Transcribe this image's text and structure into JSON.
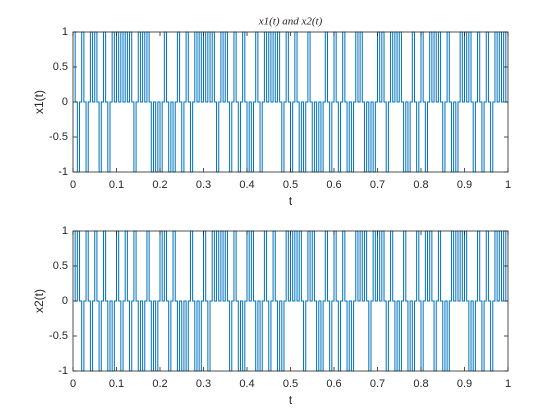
{
  "chart_data": [
    {
      "type": "line",
      "title": "x1(t) and x2(t)",
      "x_label": "t",
      "y_label": "x1(t)",
      "step": true,
      "xlim": [
        0,
        1
      ],
      "ylim": [
        -1,
        1
      ],
      "xticks": [
        0,
        0.1,
        0.2,
        0.3,
        0.4,
        0.5,
        0.6,
        0.7,
        0.8,
        0.9,
        1
      ],
      "yticks": [
        -1,
        -0.5,
        0,
        0.5,
        1
      ],
      "x": [
        0,
        0.005,
        0.01,
        0.015,
        0.02,
        0.025,
        0.03,
        0.035,
        0.04,
        0.045,
        0.05,
        0.055,
        0.06,
        0.065,
        0.07,
        0.075,
        0.08,
        0.085,
        0.09,
        0.095,
        0.1,
        0.105,
        0.11,
        0.115,
        0.12,
        0.125,
        0.13,
        0.135,
        0.14,
        0.145,
        0.15,
        0.155,
        0.16,
        0.165,
        0.17,
        0.175,
        0.18,
        0.185,
        0.19,
        0.195,
        0.2,
        0.205,
        0.21,
        0.215,
        0.22,
        0.225,
        0.23,
        0.235,
        0.24,
        0.245,
        0.25,
        0.255,
        0.26,
        0.265,
        0.27,
        0.275,
        0.28,
        0.285,
        0.29,
        0.295,
        0.3,
        0.305,
        0.31,
        0.315,
        0.32,
        0.325,
        0.33,
        0.335,
        0.34,
        0.345,
        0.35,
        0.355,
        0.36,
        0.365,
        0.37,
        0.375,
        0.38,
        0.385,
        0.39,
        0.395,
        0.4,
        0.405,
        0.41,
        0.415,
        0.42,
        0.425,
        0.43,
        0.435,
        0.44,
        0.445,
        0.45,
        0.455,
        0.46,
        0.465,
        0.47,
        0.475,
        0.48,
        0.485,
        0.49,
        0.495,
        0.5,
        0.505,
        0.51,
        0.515,
        0.52,
        0.525,
        0.53,
        0.535,
        0.54,
        0.545,
        0.55,
        0.555,
        0.56,
        0.565,
        0.57,
        0.575,
        0.58,
        0.585,
        0.59,
        0.595,
        0.6,
        0.605,
        0.61,
        0.615,
        0.62,
        0.625,
        0.63,
        0.635,
        0.64,
        0.645,
        0.65,
        0.655,
        0.66,
        0.665,
        0.67,
        0.675,
        0.68,
        0.685,
        0.69,
        0.695,
        0.7,
        0.705,
        0.71,
        0.715,
        0.72,
        0.725,
        0.73,
        0.735,
        0.74,
        0.745,
        0.75,
        0.755,
        0.76,
        0.765,
        0.77,
        0.775,
        0.78,
        0.785,
        0.79,
        0.795,
        0.8,
        0.805,
        0.81,
        0.815,
        0.82,
        0.825,
        0.83,
        0.835,
        0.84,
        0.845,
        0.85,
        0.855,
        0.86,
        0.865,
        0.87,
        0.875,
        0.88,
        0.885,
        0.89,
        0.895,
        0.9,
        0.905,
        0.91,
        0.915,
        0.92,
        0.925,
        0.93,
        0.935,
        0.94,
        0.945,
        0.95,
        0.955,
        0.96,
        0.965,
        0.97,
        0.975,
        0.98,
        0.985,
        0.99,
        0.995
      ],
      "series": [
        {
          "color": "#0072bd",
          "values": [
            1,
            0,
            -1,
            0,
            1,
            0,
            -1,
            0,
            1,
            0,
            1,
            0,
            -1,
            0,
            1,
            0,
            -1,
            0,
            1,
            0,
            1,
            0,
            1,
            0,
            1,
            0,
            1,
            0,
            -1,
            0,
            1,
            0,
            1,
            0,
            1,
            0,
            -1,
            0,
            -1,
            0,
            -1,
            0,
            1,
            0,
            -1,
            0,
            -1,
            0,
            1,
            0,
            -1,
            0,
            1,
            0,
            -1,
            0,
            1,
            0,
            1,
            0,
            1,
            0,
            1,
            0,
            1,
            0,
            -1,
            0,
            1,
            0,
            1,
            0,
            -1,
            0,
            1,
            0,
            -1,
            0,
            1,
            0,
            -1,
            0,
            -1,
            0,
            1,
            0,
            -1,
            0,
            1,
            0,
            1,
            0,
            1,
            0,
            1,
            0,
            -1,
            0,
            1,
            0,
            -1,
            0,
            1,
            0,
            -1,
            0,
            -1,
            0,
            1,
            0,
            -1,
            0,
            -1,
            0,
            -1,
            0,
            1,
            0,
            -1,
            0,
            1,
            0,
            -1,
            0,
            1,
            0,
            -1,
            0,
            -1,
            0,
            1,
            0,
            1,
            0,
            -1,
            0,
            -1,
            0,
            -1,
            0,
            1,
            0,
            1,
            0,
            -1,
            0,
            1,
            0,
            1,
            0,
            1,
            0,
            -1,
            0,
            -1,
            0,
            1,
            0,
            -1,
            0,
            1,
            0,
            -1,
            0,
            1,
            0,
            1,
            0,
            1,
            0,
            -1,
            0,
            1,
            0,
            -1,
            0,
            -1,
            0,
            1,
            0,
            1,
            0,
            1,
            0,
            -1,
            0,
            1,
            0,
            -1,
            0,
            1,
            0,
            -1,
            0,
            1,
            0,
            1,
            0,
            1,
            0
          ]
        }
      ]
    },
    {
      "type": "line",
      "x_label": "t",
      "y_label": "x2(t)",
      "step": true,
      "xlim": [
        0,
        1
      ],
      "ylim": [
        -1,
        1
      ],
      "xticks": [
        0,
        0.1,
        0.2,
        0.3,
        0.4,
        0.5,
        0.6,
        0.7,
        0.8,
        0.9,
        1
      ],
      "yticks": [
        -1,
        -0.5,
        0,
        0.5,
        1
      ],
      "x": [
        0,
        0.005,
        0.01,
        0.015,
        0.02,
        0.025,
        0.03,
        0.035,
        0.04,
        0.045,
        0.05,
        0.055,
        0.06,
        0.065,
        0.07,
        0.075,
        0.08,
        0.085,
        0.09,
        0.095,
        0.1,
        0.105,
        0.11,
        0.115,
        0.12,
        0.125,
        0.13,
        0.135,
        0.14,
        0.145,
        0.15,
        0.155,
        0.16,
        0.165,
        0.17,
        0.175,
        0.18,
        0.185,
        0.19,
        0.195,
        0.2,
        0.205,
        0.21,
        0.215,
        0.22,
        0.225,
        0.23,
        0.235,
        0.24,
        0.245,
        0.25,
        0.255,
        0.26,
        0.265,
        0.27,
        0.275,
        0.28,
        0.285,
        0.29,
        0.295,
        0.3,
        0.305,
        0.31,
        0.315,
        0.32,
        0.325,
        0.33,
        0.335,
        0.34,
        0.345,
        0.35,
        0.355,
        0.36,
        0.365,
        0.37,
        0.375,
        0.38,
        0.385,
        0.39,
        0.395,
        0.4,
        0.405,
        0.41,
        0.415,
        0.42,
        0.425,
        0.43,
        0.435,
        0.44,
        0.445,
        0.45,
        0.455,
        0.46,
        0.465,
        0.47,
        0.475,
        0.48,
        0.485,
        0.49,
        0.495,
        0.5,
        0.505,
        0.51,
        0.515,
        0.52,
        0.525,
        0.53,
        0.535,
        0.54,
        0.545,
        0.55,
        0.555,
        0.56,
        0.565,
        0.57,
        0.575,
        0.58,
        0.585,
        0.59,
        0.595,
        0.6,
        0.605,
        0.61,
        0.615,
        0.62,
        0.625,
        0.63,
        0.635,
        0.64,
        0.645,
        0.65,
        0.655,
        0.66,
        0.665,
        0.67,
        0.675,
        0.68,
        0.685,
        0.69,
        0.695,
        0.7,
        0.705,
        0.71,
        0.715,
        0.72,
        0.725,
        0.73,
        0.735,
        0.74,
        0.745,
        0.75,
        0.755,
        0.76,
        0.765,
        0.77,
        0.775,
        0.78,
        0.785,
        0.79,
        0.795,
        0.8,
        0.805,
        0.81,
        0.815,
        0.82,
        0.825,
        0.83,
        0.835,
        0.84,
        0.845,
        0.85,
        0.855,
        0.86,
        0.865,
        0.87,
        0.875,
        0.88,
        0.885,
        0.89,
        0.895,
        0.9,
        0.905,
        0.91,
        0.915,
        0.92,
        0.925,
        0.93,
        0.935,
        0.94,
        0.945,
        0.95,
        0.955,
        0.96,
        0.965,
        0.97,
        0.975,
        0.98,
        0.985,
        0.99,
        0.995
      ],
      "series": [
        {
          "color": "#0072bd",
          "values": [
            1,
            0,
            1,
            0,
            -1,
            0,
            1,
            0,
            -1,
            0,
            1,
            0,
            -1,
            0,
            1,
            0,
            -1,
            0,
            -1,
            0,
            1,
            0,
            -1,
            0,
            1,
            0,
            -1,
            0,
            1,
            0,
            -1,
            0,
            -1,
            0,
            1,
            0,
            -1,
            0,
            -1,
            0,
            1,
            0,
            1,
            0,
            -1,
            0,
            1,
            0,
            -1,
            0,
            -1,
            0,
            -1,
            0,
            1,
            0,
            -1,
            0,
            -1,
            0,
            1,
            0,
            -1,
            0,
            1,
            0,
            1,
            0,
            1,
            0,
            1,
            0,
            -1,
            0,
            1,
            0,
            -1,
            0,
            -1,
            0,
            1,
            0,
            1,
            0,
            -1,
            0,
            -1,
            0,
            1,
            0,
            -1,
            0,
            1,
            0,
            -1,
            0,
            -1,
            0,
            1,
            0,
            1,
            0,
            1,
            0,
            1,
            0,
            -1,
            0,
            1,
            0,
            1,
            0,
            -1,
            0,
            -1,
            0,
            1,
            0,
            -1,
            0,
            1,
            0,
            -1,
            0,
            1,
            0,
            -1,
            0,
            -1,
            0,
            1,
            0,
            1,
            0,
            1,
            0,
            -1,
            0,
            1,
            0,
            1,
            0,
            1,
            0,
            -1,
            0,
            1,
            0,
            -1,
            0,
            -1,
            0,
            1,
            0,
            -1,
            0,
            -1,
            0,
            1,
            0,
            -1,
            0,
            1,
            0,
            1,
            0,
            -1,
            0,
            1,
            0,
            -1,
            0,
            -1,
            0,
            1,
            0,
            1,
            0,
            1,
            0,
            1,
            0,
            -1,
            0,
            -1,
            0,
            1,
            0,
            -1,
            0,
            1,
            0,
            -1,
            0,
            1,
            0,
            1,
            0,
            1,
            0
          ]
        }
      ]
    }
  ]
}
